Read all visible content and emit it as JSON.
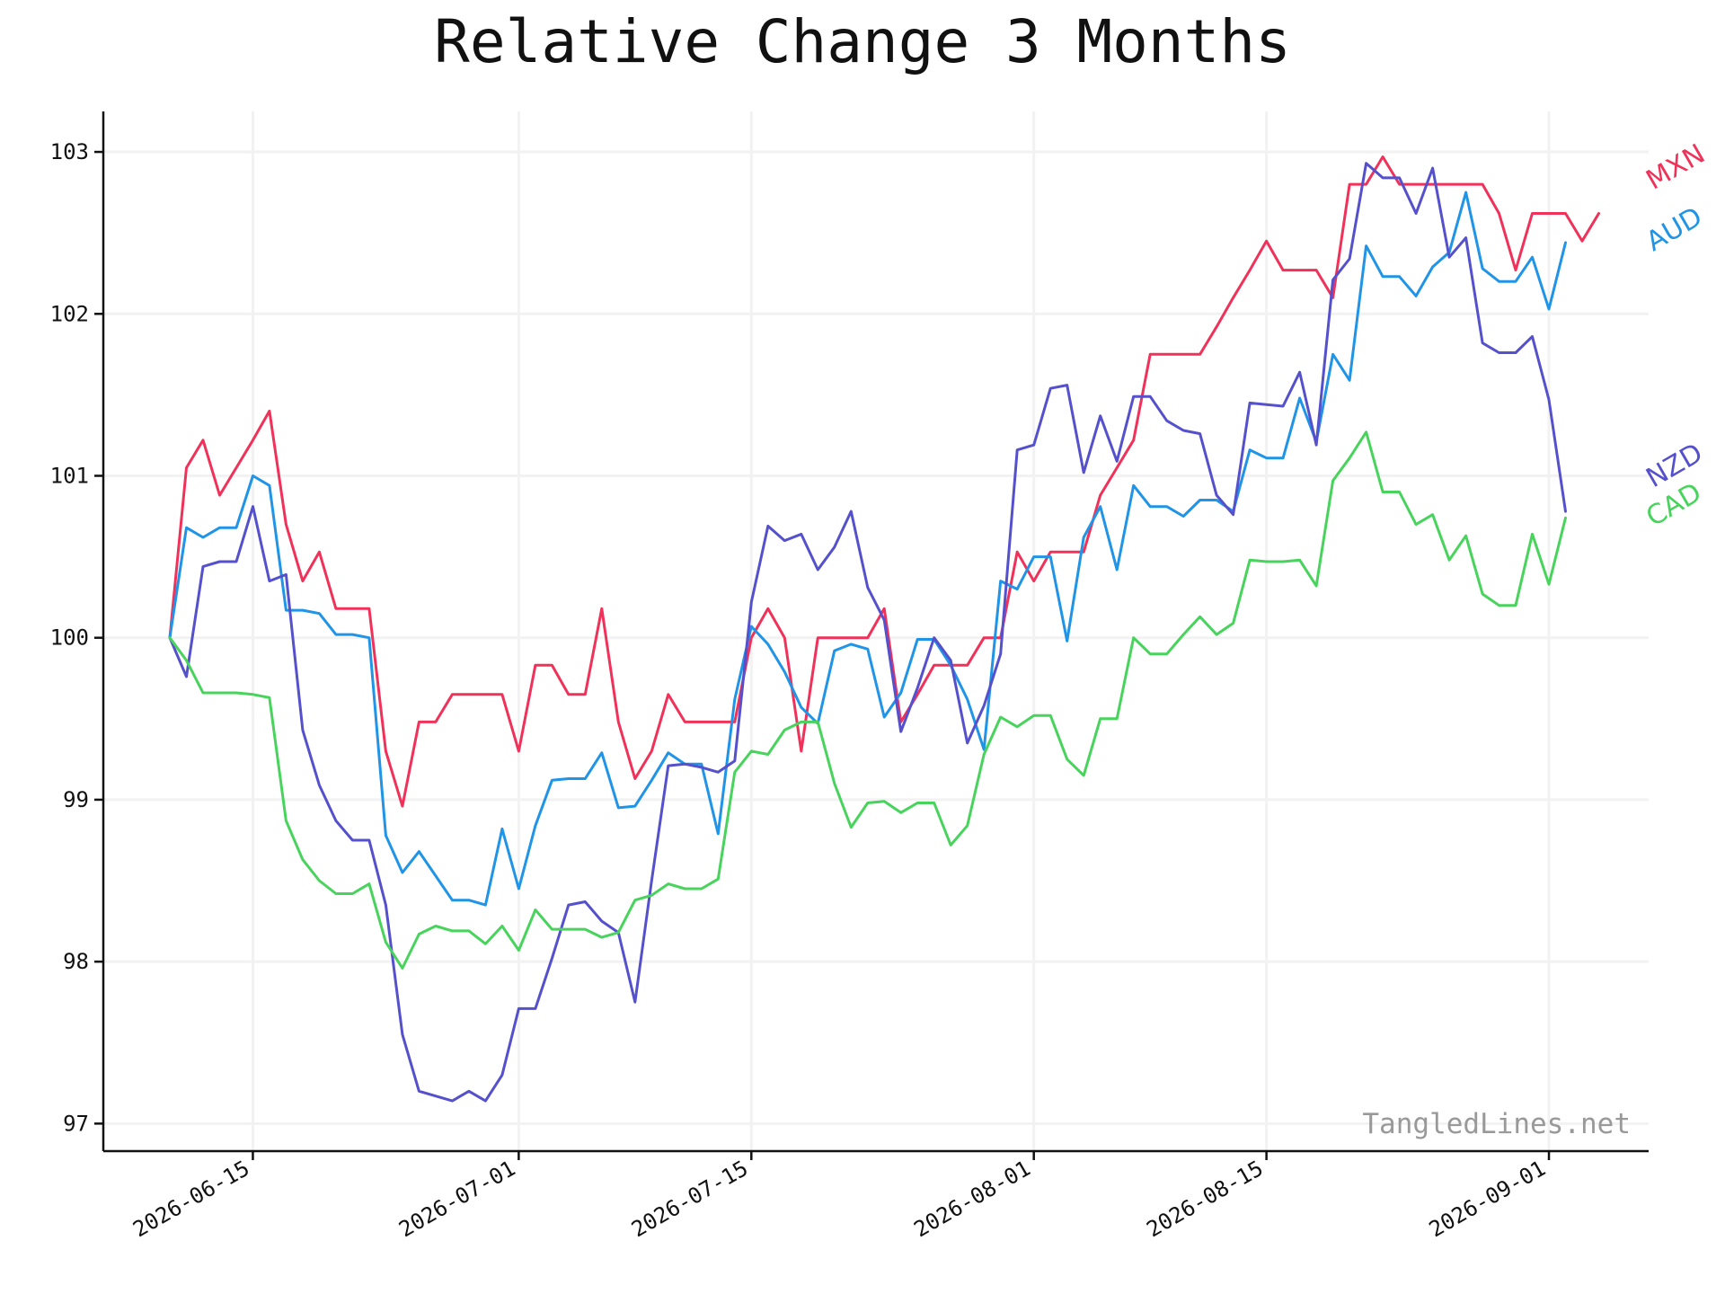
{
  "chart_data": {
    "type": "line",
    "title": "Relative Change 3 Months",
    "xlabel": "",
    "ylabel": "",
    "x_range": [
      "2026-06-06",
      "2026-09-07"
    ],
    "ylim": [
      96.83,
      103.25
    ],
    "y_ticks": [
      97,
      98,
      99,
      100,
      101,
      102,
      103
    ],
    "x_ticks": [
      "2026-06-15",
      "2026-07-01",
      "2026-07-15",
      "2026-08-01",
      "2026-08-15",
      "2026-09-01"
    ],
    "grid": true,
    "legend": "labels at right end of each line",
    "watermark": "TangledLines.net",
    "x_start": "2026-06-10",
    "series": [
      {
        "name": "MXN",
        "color": "#f0325a",
        "values": [
          100.0,
          101.05,
          101.22,
          100.88,
          101.05,
          101.22,
          101.4,
          100.7,
          100.35,
          100.53,
          100.18,
          100.18,
          100.18,
          99.3,
          98.96,
          99.48,
          99.48,
          99.65,
          99.65,
          99.65,
          99.65,
          99.3,
          99.83,
          99.83,
          99.65,
          99.65,
          100.18,
          99.48,
          99.13,
          99.3,
          99.65,
          99.48,
          99.48,
          99.48,
          99.48,
          100.0,
          100.18,
          100.0,
          99.3,
          100.0,
          100.0,
          100.0,
          100.0,
          100.18,
          99.48,
          99.65,
          99.83,
          99.83,
          99.83,
          100.0,
          100.0,
          100.53,
          100.35,
          100.53,
          100.53,
          100.53,
          100.88,
          101.05,
          101.22,
          101.75,
          101.75,
          101.75,
          101.75,
          101.92,
          102.1,
          102.27,
          102.45,
          102.27,
          102.27,
          102.27,
          102.1,
          102.8,
          102.8,
          102.97,
          102.8,
          102.8,
          102.8,
          102.8,
          102.8,
          102.8,
          102.62,
          102.27,
          102.62,
          102.62,
          102.62,
          102.45,
          102.62
        ]
      },
      {
        "name": "AUD",
        "color": "#2094e6",
        "values": [
          100.0,
          100.68,
          100.62,
          100.68,
          100.68,
          101.0,
          100.94,
          100.17,
          100.17,
          100.15,
          100.02,
          100.02,
          100.0,
          98.78,
          98.55,
          98.68,
          98.53,
          98.38,
          98.38,
          98.35,
          98.82,
          98.45,
          98.84,
          99.12,
          99.13,
          99.13,
          99.29,
          98.95,
          98.96,
          99.12,
          99.29,
          99.22,
          99.22,
          98.79,
          99.62,
          100.07,
          99.96,
          99.79,
          99.57,
          99.47,
          99.92,
          99.96,
          99.93,
          99.51,
          99.66,
          99.99,
          99.99,
          99.83,
          99.62,
          99.31,
          100.35,
          100.3,
          100.5,
          100.5,
          99.98,
          100.62,
          100.81,
          100.42,
          100.94,
          100.81,
          100.81,
          100.75,
          100.85,
          100.85,
          100.78,
          101.16,
          101.11,
          101.11,
          101.48,
          101.21,
          101.75,
          101.59,
          102.42,
          102.23,
          102.23,
          102.11,
          102.29,
          102.38,
          102.75,
          102.28,
          102.2,
          102.2,
          102.35,
          102.03,
          102.44
        ]
      },
      {
        "name": "NZD",
        "color": "#5550cc",
        "values": [
          100.0,
          99.76,
          100.44,
          100.47,
          100.47,
          100.81,
          100.35,
          100.39,
          99.43,
          99.09,
          98.87,
          98.75,
          98.75,
          98.35,
          97.55,
          97.2,
          97.17,
          97.14,
          97.2,
          97.14,
          97.3,
          97.71,
          97.71,
          98.02,
          98.35,
          98.37,
          98.25,
          98.18,
          97.75,
          98.5,
          99.21,
          99.22,
          99.2,
          99.17,
          99.24,
          100.22,
          100.69,
          100.6,
          100.64,
          100.42,
          100.56,
          100.78,
          100.31,
          100.11,
          99.42,
          99.69,
          100.0,
          99.86,
          99.35,
          99.58,
          99.9,
          101.16,
          101.19,
          101.54,
          101.56,
          101.02,
          101.37,
          101.09,
          101.49,
          101.49,
          101.34,
          101.28,
          101.26,
          100.88,
          100.76,
          101.45,
          101.44,
          101.43,
          101.64,
          101.19,
          102.21,
          102.34,
          102.93,
          102.84,
          102.84,
          102.62,
          102.9,
          102.35,
          102.47,
          101.82,
          101.76,
          101.76,
          101.86,
          101.47,
          100.78
        ]
      },
      {
        "name": "CAD",
        "color": "#48d45c",
        "values": [
          100.0,
          99.86,
          99.66,
          99.66,
          99.66,
          99.65,
          99.63,
          98.87,
          98.63,
          98.5,
          98.42,
          98.42,
          98.48,
          98.12,
          97.96,
          98.17,
          98.22,
          98.19,
          98.19,
          98.11,
          98.22,
          98.07,
          98.32,
          98.2,
          98.2,
          98.2,
          98.15,
          98.18,
          98.38,
          98.41,
          98.48,
          98.45,
          98.45,
          98.51,
          99.17,
          99.3,
          99.28,
          99.43,
          99.48,
          99.48,
          99.1,
          98.83,
          98.98,
          98.99,
          98.92,
          98.98,
          98.98,
          98.72,
          98.84,
          99.28,
          99.51,
          99.45,
          99.52,
          99.52,
          99.25,
          99.15,
          99.5,
          99.5,
          100.0,
          99.9,
          99.9,
          100.02,
          100.13,
          100.02,
          100.09,
          100.48,
          100.47,
          100.47,
          100.48,
          100.32,
          100.97,
          101.11,
          101.27,
          100.9,
          100.9,
          100.7,
          100.76,
          100.48,
          100.63,
          100.27,
          100.2,
          100.2,
          100.64,
          100.33,
          100.74
        ]
      }
    ]
  }
}
